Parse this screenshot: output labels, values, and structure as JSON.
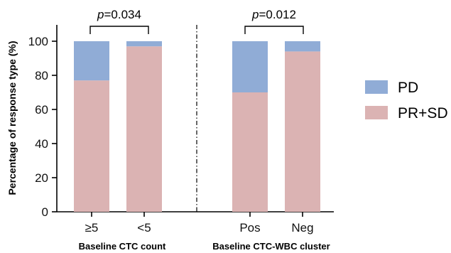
{
  "chart_data": {
    "type": "bar",
    "stacked": true,
    "ylabel": "Percentage of response type (%)",
    "ylim": [
      0,
      100
    ],
    "yticks": [
      0,
      20,
      40,
      60,
      80,
      100
    ],
    "categories": [
      "≥5",
      "<5",
      "Pos",
      "Neg"
    ],
    "groups": [
      {
        "label": "Baseline CTC count",
        "categories": [
          "≥5",
          "<5"
        ],
        "p_value": "=0.034"
      },
      {
        "label": "Baseline CTC-WBC cluster",
        "categories": [
          "Pos",
          "Neg"
        ],
        "p_value": "=0.012"
      }
    ],
    "p_symbol": "p",
    "series": [
      {
        "name": "PR+SD",
        "color": "#dbb3b3",
        "values": [
          77,
          97,
          70,
          94
        ]
      },
      {
        "name": "PD",
        "color": "#90acd6",
        "values": [
          23,
          3,
          30,
          6
        ]
      }
    ],
    "legend": {
      "position": "right",
      "order": [
        "PD",
        "PR+SD"
      ]
    },
    "grid": false
  }
}
